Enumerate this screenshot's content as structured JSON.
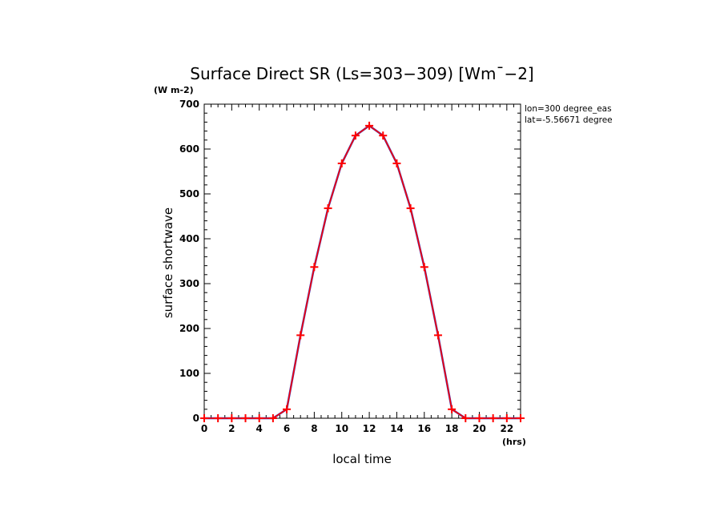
{
  "chart_data": {
    "type": "line",
    "title": "Surface Direct SR (Ls=303-309) [Wm^-2]",
    "title_display": "Surface Direct SR (Ls=303−309) [Wm¯−2]",
    "ylabel": "surface shortwave",
    "xlabel": "local time",
    "y_unit": "(W m-2)",
    "x_unit": "(hrs)",
    "xlim": [
      0,
      23
    ],
    "ylim": [
      0,
      700
    ],
    "x_ticks": [
      0,
      2,
      4,
      6,
      8,
      10,
      12,
      14,
      16,
      18,
      20,
      22
    ],
    "x_tick_labels": [
      "0",
      "2",
      "4",
      "6",
      "8",
      "10",
      "12",
      "14",
      "16",
      "18",
      "20",
      "22"
    ],
    "y_ticks": [
      0,
      100,
      200,
      300,
      400,
      500,
      600,
      700
    ],
    "y_tick_labels": [
      "0",
      "100",
      "200",
      "300",
      "400",
      "500",
      "600",
      "700"
    ],
    "annotations": [
      "lon=300 degree_eas",
      "lat=-5.56671 degree"
    ],
    "series": [
      {
        "color": "#ff0000",
        "marker": "plus",
        "x": [
          0,
          1,
          2,
          3,
          4,
          5,
          6,
          7,
          8,
          9,
          10,
          11,
          12,
          13,
          14,
          15,
          16,
          17,
          18,
          19,
          20,
          21,
          22,
          23
        ],
        "values": [
          0,
          0,
          0,
          0,
          0,
          0,
          20,
          185,
          337,
          468,
          568,
          630,
          652,
          630,
          568,
          468,
          337,
          185,
          20,
          0,
          0,
          0,
          0,
          0
        ]
      }
    ],
    "underlay_line_color": "#3a2fb0",
    "grid": false
  }
}
